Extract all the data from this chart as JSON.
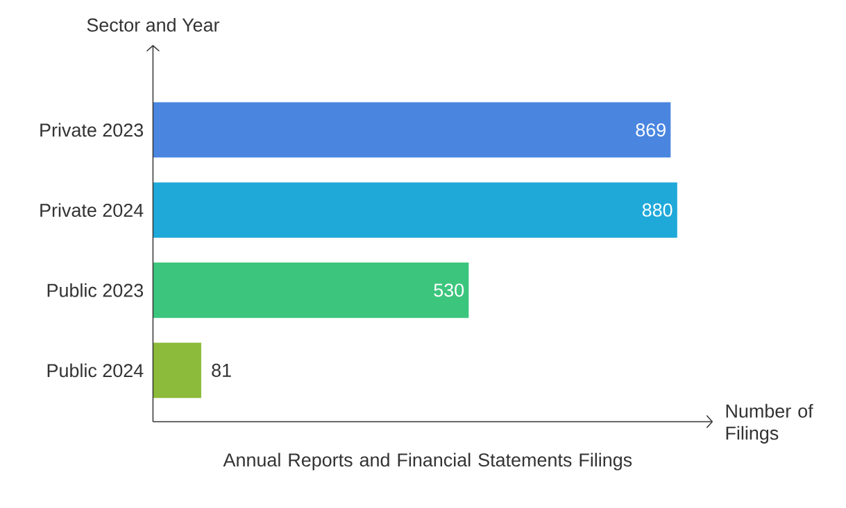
{
  "chart_data": {
    "type": "bar",
    "orientation": "horizontal",
    "title": "Annual Reports and Financial Statements Filings",
    "xlabel": "Number of Filings",
    "ylabel": "Sector and Year",
    "categories": [
      "Private 2023",
      "Private 2024",
      "Public 2023",
      "Public 2024"
    ],
    "values": [
      869,
      880,
      530,
      81
    ],
    "colors": [
      "#4a86e0",
      "#1fa9d9",
      "#3cc57d",
      "#8cba3a"
    ],
    "xlim": [
      0,
      940
    ],
    "data_labels": true
  }
}
